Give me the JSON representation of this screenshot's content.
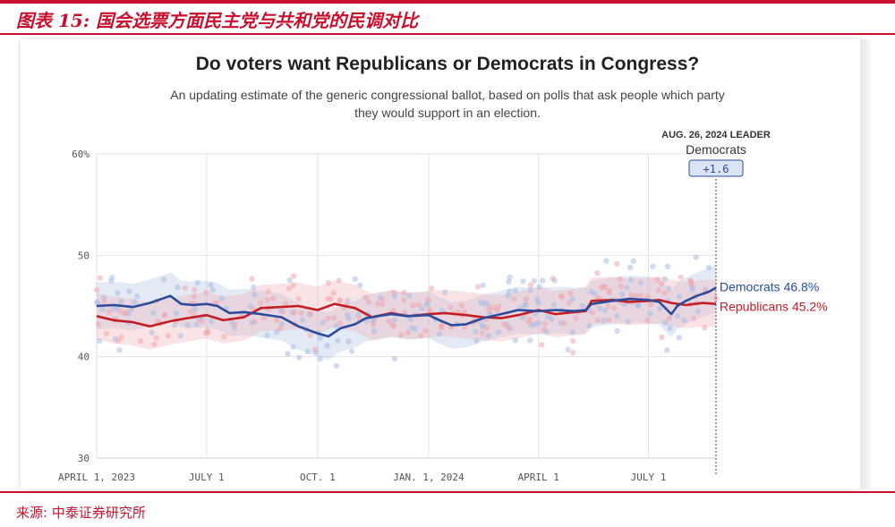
{
  "header": {
    "figure_title": "图表 15:   国会选票方面民主党与共和党的民调对比",
    "source": "来源:  中泰证券研究所"
  },
  "chart_data": {
    "type": "line",
    "title": "Do voters want Republicans or Democrats in Congress?",
    "subtitle_line1": "An updating estimate of the generic congressional ballot, based on polls that ask people which party",
    "subtitle_line2": "they would support in an election.",
    "x_tick_labels": [
      "APRIL 1, 2023",
      "JULY 1",
      "OCT. 1",
      "JAN. 1, 2024",
      "APRIL 1",
      "JULY 1"
    ],
    "x_tick_dates": [
      "2023-04-01",
      "2023-07-01",
      "2023-10-01",
      "2024-01-01",
      "2024-04-01",
      "2024-07-01"
    ],
    "xlim": [
      "2023-04-01",
      "2024-08-26"
    ],
    "y_tick_labels": [
      "60%",
      "50",
      "40",
      "30"
    ],
    "y_ticks": [
      60,
      50,
      40,
      30
    ],
    "ylim": [
      30,
      60
    ],
    "grid": true,
    "leader": {
      "date": "2024-08-26",
      "heading": "AUG. 26, 2024 LEADER",
      "party": "Democrats",
      "margin": "+1.6"
    },
    "series": [
      {
        "name": "Democrats",
        "end_label": "Democrats 46.8%",
        "color": "#2b4b9b",
        "points": [
          [
            "2023-04-01",
            45.0
          ],
          [
            "2023-04-15",
            45.1
          ],
          [
            "2023-05-01",
            44.9
          ],
          [
            "2023-05-15",
            45.3
          ],
          [
            "2023-06-01",
            46.0
          ],
          [
            "2023-06-10",
            45.2
          ],
          [
            "2023-06-20",
            45.1
          ],
          [
            "2023-07-01",
            45.2
          ],
          [
            "2023-07-10",
            45.0
          ],
          [
            "2023-07-20",
            44.3
          ],
          [
            "2023-08-01",
            44.4
          ],
          [
            "2023-08-15",
            44.2
          ],
          [
            "2023-09-01",
            43.9
          ],
          [
            "2023-09-15",
            43.0
          ],
          [
            "2023-10-01",
            42.3
          ],
          [
            "2023-10-10",
            42.0
          ],
          [
            "2023-10-20",
            42.8
          ],
          [
            "2023-11-01",
            43.2
          ],
          [
            "2023-11-10",
            43.8
          ],
          [
            "2023-11-20",
            44.0
          ],
          [
            "2023-12-01",
            44.2
          ],
          [
            "2023-12-15",
            44.0
          ],
          [
            "2024-01-01",
            44.1
          ],
          [
            "2024-01-10",
            43.6
          ],
          [
            "2024-01-20",
            43.1
          ],
          [
            "2024-02-01",
            43.2
          ],
          [
            "2024-02-15",
            43.8
          ],
          [
            "2024-03-01",
            44.2
          ],
          [
            "2024-03-15",
            44.6
          ],
          [
            "2024-04-01",
            44.5
          ],
          [
            "2024-04-15",
            44.6
          ],
          [
            "2024-05-01",
            44.5
          ],
          [
            "2024-05-10",
            44.6
          ],
          [
            "2024-05-15",
            45.2
          ],
          [
            "2024-06-01",
            45.5
          ],
          [
            "2024-06-15",
            45.7
          ],
          [
            "2024-07-01",
            45.6
          ],
          [
            "2024-07-10",
            45.4
          ],
          [
            "2024-07-20",
            44.2
          ],
          [
            "2024-07-25",
            45.0
          ],
          [
            "2024-08-01",
            45.5
          ],
          [
            "2024-08-10",
            46.0
          ],
          [
            "2024-08-20",
            46.4
          ],
          [
            "2024-08-26",
            46.8
          ]
        ]
      },
      {
        "name": "Republicans",
        "end_label": "Republicans 45.2%",
        "color": "#c41e24",
        "points": [
          [
            "2023-04-01",
            44.0
          ],
          [
            "2023-04-15",
            43.6
          ],
          [
            "2023-05-01",
            43.4
          ],
          [
            "2023-05-15",
            43.0
          ],
          [
            "2023-06-01",
            43.5
          ],
          [
            "2023-06-15",
            43.8
          ],
          [
            "2023-07-01",
            44.1
          ],
          [
            "2023-07-15",
            43.6
          ],
          [
            "2023-08-01",
            43.9
          ],
          [
            "2023-08-15",
            44.8
          ],
          [
            "2023-09-01",
            44.9
          ],
          [
            "2023-09-15",
            45.0
          ],
          [
            "2023-10-01",
            44.6
          ],
          [
            "2023-10-15",
            45.2
          ],
          [
            "2023-11-01",
            44.8
          ],
          [
            "2023-11-15",
            43.9
          ],
          [
            "2023-12-01",
            44.3
          ],
          [
            "2023-12-15",
            44.0
          ],
          [
            "2024-01-01",
            44.2
          ],
          [
            "2024-01-15",
            44.3
          ],
          [
            "2024-02-01",
            44.1
          ],
          [
            "2024-02-15",
            43.9
          ],
          [
            "2024-03-01",
            43.8
          ],
          [
            "2024-03-15",
            44.1
          ],
          [
            "2024-04-01",
            44.6
          ],
          [
            "2024-04-15",
            44.2
          ],
          [
            "2024-05-01",
            44.4
          ],
          [
            "2024-05-10",
            44.5
          ],
          [
            "2024-05-15",
            45.5
          ],
          [
            "2024-06-01",
            45.6
          ],
          [
            "2024-06-15",
            45.4
          ],
          [
            "2024-07-01",
            45.5
          ],
          [
            "2024-07-10",
            45.6
          ],
          [
            "2024-07-20",
            45.3
          ],
          [
            "2024-08-01",
            45.1
          ],
          [
            "2024-08-15",
            45.3
          ],
          [
            "2024-08-26",
            45.2
          ]
        ]
      }
    ]
  }
}
